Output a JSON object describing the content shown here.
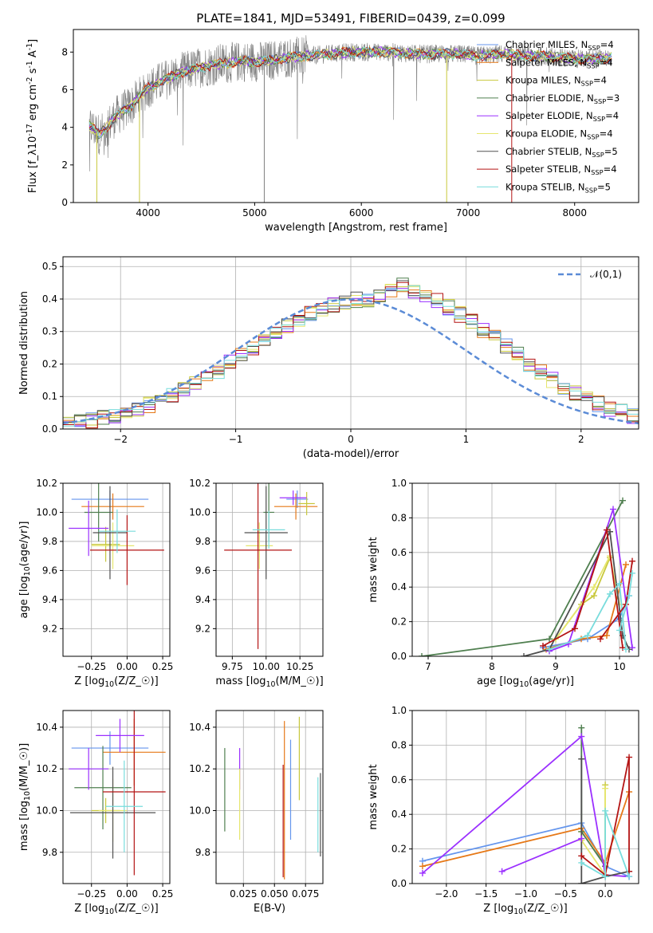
{
  "title": "PLATE=1841, MJD=53491, FIBERID=0439, z=0.099",
  "colors": {
    "Chabrier MILES": "#6495ed",
    "Salpeter MILES": "#e67817",
    "Kroupa MILES": "#c8c83c",
    "Chabrier ELODIE": "#4f7f4f",
    "Salpeter ELODIE": "#9b30ff",
    "Kroupa ELODIE": "#e6e66e",
    "Chabrier STELIB": "#505050",
    "Salpeter STELIB": "#b41414",
    "Kroupa STELIB": "#78dcdc"
  },
  "chart_data": [
    {
      "id": "spectrum",
      "type": "line",
      "title": "PLATE=1841, MJD=53491, FIBERID=0439, z=0.099",
      "xlabel": "wavelength [Angstrom, rest frame]",
      "ylabel": "Flux [f$_\\lambda$10$^{-17}$ erg cm$^{-2}$ s$^{-1}$ A$^{-1}$]",
      "xlim": [
        3300,
        8600
      ],
      "ylim": [
        0,
        9.2
      ],
      "xticks": [
        4000,
        5000,
        6000,
        7000,
        8000
      ],
      "yticks": [
        0,
        2,
        4,
        6,
        8
      ],
      "legend_loc": "upper right",
      "data_color": "#808080",
      "continuum_x": [
        3450,
        3550,
        3700,
        3850,
        4000,
        4150,
        4300,
        4500,
        4700,
        4900,
        5100,
        5300,
        5500,
        5700,
        5900,
        6100,
        6300,
        6500,
        6700,
        6900,
        7100,
        7300,
        7500,
        7700,
        7900,
        8100,
        8300
      ],
      "continuum_y": [
        4.1,
        3.6,
        4.6,
        5.2,
        6.1,
        6.5,
        6.9,
        7.2,
        7.4,
        7.5,
        7.5,
        7.7,
        7.8,
        7.9,
        8.0,
        8.0,
        8.0,
        7.9,
        7.9,
        7.9,
        7.8,
        7.9,
        7.8,
        7.8,
        7.7,
        7.6,
        7.7
      ],
      "series": [
        {
          "name": "Chabrier MILES, N$_{SSP}$=4"
        },
        {
          "name": "Salpeter MILES, N$_{SSP}$=4"
        },
        {
          "name": "Kroupa MILES, N$_{SSP}$=4"
        },
        {
          "name": "Chabrier ELODIE, N$_{SSP}$=3"
        },
        {
          "name": "Salpeter ELODIE, N$_{SSP}$=4"
        },
        {
          "name": "Kroupa ELODIE, N$_{SSP}$=4"
        },
        {
          "name": "Chabrier STELIB, N$_{SSP}$=5"
        },
        {
          "name": "Salpeter STELIB, N$_{SSP}$=4"
        },
        {
          "name": "Kroupa STELIB, N$_{SSP}$=5"
        }
      ]
    },
    {
      "id": "residuals",
      "type": "histogram",
      "xlabel": "(data-model)/error",
      "ylabel": "Normed distribution",
      "xlim": [
        -2.5,
        2.5
      ],
      "ylim": [
        0,
        0.53
      ],
      "xticks": [
        -2,
        -1,
        0,
        1,
        2
      ],
      "yticks": [
        0.0,
        0.1,
        0.2,
        0.3,
        0.4,
        0.5
      ],
      "legend": "$\\mathcal{N}(0,1)$",
      "bin_width": 0.1,
      "bin_start": -2.5,
      "base_values": [
        0.018,
        0.022,
        0.027,
        0.033,
        0.04,
        0.05,
        0.062,
        0.074,
        0.088,
        0.103,
        0.12,
        0.14,
        0.16,
        0.18,
        0.205,
        0.228,
        0.25,
        0.272,
        0.295,
        0.318,
        0.338,
        0.356,
        0.37,
        0.383,
        0.393,
        0.398,
        0.4,
        0.412,
        0.43,
        0.44,
        0.425,
        0.41,
        0.395,
        0.375,
        0.352,
        0.33,
        0.305,
        0.28,
        0.253,
        0.228,
        0.2,
        0.176,
        0.152,
        0.13,
        0.11,
        0.092,
        0.077,
        0.064,
        0.052,
        0.042
      ]
    },
    {
      "id": "age-vs-Z",
      "type": "errorbar",
      "xlabel": "Z [log$_{10}$($Z/Z_\\odot$)]",
      "ylabel": "age  [log$_{10}$($age/yr$)]",
      "xlim": [
        -0.45,
        0.3
      ],
      "ylim": [
        9.01,
        10.2
      ],
      "xticks": [
        -0.25,
        0.0,
        0.25
      ],
      "xticklabels": [
        "−0.25",
        "0.00",
        "0.25"
      ],
      "yticks": [
        9.2,
        9.4,
        9.6,
        9.8,
        10.0,
        10.2
      ],
      "points": [
        {
          "series": "Chabrier MILES",
          "x": -0.12,
          "xerr": 0.27,
          "y": 10.09,
          "yerr": 0.06
        },
        {
          "series": "Salpeter MILES",
          "x": -0.1,
          "xerr": 0.22,
          "y": 10.04,
          "yerr": 0.09
        },
        {
          "series": "Kroupa MILES",
          "x": -0.15,
          "xerr": 0.1,
          "y": 9.78,
          "yerr": 0.12
        },
        {
          "series": "Chabrier ELODIE",
          "x": -0.2,
          "xerr": 0.1,
          "y": 10.0,
          "yerr": 0.2
        },
        {
          "series": "Salpeter ELODIE",
          "x": -0.27,
          "xerr": 0.14,
          "y": 9.89,
          "yerr": 0.19
        },
        {
          "series": "Kroupa ELODIE",
          "x": -0.1,
          "xerr": 0.15,
          "y": 9.77,
          "yerr": 0.16
        },
        {
          "series": "Chabrier STELIB",
          "x": -0.12,
          "xerr": 0.12,
          "y": 9.86,
          "yerr": 0.32
        },
        {
          "series": "Salpeter STELIB",
          "x": 0.0,
          "xerr": 0.26,
          "y": 9.74,
          "yerr": 0.24
        },
        {
          "series": "Kroupa STELIB",
          "x": -0.07,
          "xerr": 0.13,
          "y": 9.87,
          "yerr": 0.15
        }
      ]
    },
    {
      "id": "age-vs-mass",
      "type": "errorbar",
      "xlabel": "mass [log$_{10}$($M/M_\\odot$)]",
      "xlim": [
        9.63,
        10.42
      ],
      "ylim": [
        9.01,
        10.2
      ],
      "xticks": [
        9.75,
        10.0,
        10.25
      ],
      "xticklabels": [
        "9.75",
        "10.00",
        "10.25"
      ],
      "yticks": [
        9.2,
        9.4,
        9.6,
        9.8,
        10.0,
        10.2
      ],
      "points": [
        {
          "series": "Chabrier MILES",
          "x": 10.23,
          "xerr": 0.08,
          "y": 10.09,
          "yerr": 0.06
        },
        {
          "series": "Salpeter MILES",
          "x": 10.22,
          "xerr": 0.16,
          "y": 10.04,
          "yerr": 0.09
        },
        {
          "series": "Kroupa MILES",
          "x": 10.3,
          "xerr": 0.06,
          "y": 10.06,
          "yerr": 0.08
        },
        {
          "series": "Chabrier ELODIE",
          "x": 10.02,
          "xerr": 0.04,
          "y": 10.0,
          "yerr": 0.2
        },
        {
          "series": "Salpeter ELODIE",
          "x": 10.2,
          "xerr": 0.1,
          "y": 10.1,
          "yerr": 0.05
        },
        {
          "series": "Kroupa ELODIE",
          "x": 9.95,
          "xerr": 0.1,
          "y": 9.77,
          "yerr": 0.16
        },
        {
          "series": "Chabrier STELIB",
          "x": 10.0,
          "xerr": 0.16,
          "y": 9.86,
          "yerr": 0.32
        },
        {
          "series": "Salpeter STELIB",
          "x": 9.94,
          "xerr": 0.25,
          "y": 9.74,
          "yerr": 0.68
        },
        {
          "series": "Kroupa STELIB",
          "x": 10.02,
          "xerr": 0.12,
          "y": 9.88,
          "yerr": 0.13
        }
      ]
    },
    {
      "id": "mass-weight-vs-age",
      "type": "line",
      "xlabel": "age  [log$_{10}$($age/yr$)]",
      "ylabel": "mass weight",
      "xlim": [
        6.75,
        10.3
      ],
      "ylim": [
        0,
        1.0
      ],
      "xticks": [
        7,
        8,
        9,
        10
      ],
      "yticks": [
        0.0,
        0.2,
        0.4,
        0.6,
        0.8,
        1.0
      ],
      "series": [
        {
          "name": "Chabrier MILES",
          "x": [
            8.8,
            9.5,
            10.0,
            10.15
          ],
          "y": [
            0.05,
            0.1,
            0.22,
            0.35
          ]
        },
        {
          "name": "Salpeter MILES",
          "x": [
            8.85,
            9.4,
            9.8,
            10.1
          ],
          "y": [
            0.04,
            0.1,
            0.12,
            0.53
          ]
        },
        {
          "name": "Kroupa MILES",
          "x": [
            9.0,
            9.4,
            9.6,
            9.85
          ],
          "y": [
            0.1,
            0.3,
            0.35,
            0.57
          ]
        },
        {
          "name": "Chabrier ELODIE",
          "x": [
            6.9,
            8.9,
            10.05
          ],
          "y": [
            0.0,
            0.1,
            0.9
          ]
        },
        {
          "name": "Salpeter ELODIE",
          "x": [
            8.9,
            9.2,
            9.9,
            10.2
          ],
          "y": [
            0.03,
            0.07,
            0.85,
            0.05
          ]
        },
        {
          "name": "Kroupa ELODIE",
          "x": [
            9.0,
            9.6,
            9.85,
            10.0
          ],
          "y": [
            0.1,
            0.4,
            0.58,
            0.3
          ]
        },
        {
          "name": "Chabrier STELIB",
          "x": [
            8.5,
            8.9,
            9.85,
            10.05,
            10.15
          ],
          "y": [
            0.0,
            0.04,
            0.72,
            0.12,
            0.04
          ]
        },
        {
          "name": "Salpeter STELIB",
          "x": [
            8.8,
            9.3,
            9.8,
            10.05
          ],
          "y": [
            0.06,
            0.16,
            0.73,
            0.05
          ]
        },
        {
          "name": "Kroupa STELIB",
          "x": [
            8.9,
            9.5,
            9.85,
            10.0,
            10.1
          ],
          "y": [
            0.04,
            0.12,
            0.36,
            0.42,
            0.04
          ]
        }
      ],
      "extra_series": [
        {
          "name": "Salpeter STELIB",
          "x": [
            9.7,
            10.1,
            10.2
          ],
          "y": [
            0.1,
            0.3,
            0.55
          ]
        },
        {
          "name": "Kroupa STELIB",
          "x": [
            10.0,
            10.15,
            10.2
          ],
          "y": [
            0.15,
            0.35,
            0.48
          ]
        }
      ]
    },
    {
      "id": "mass-vs-Z",
      "type": "errorbar",
      "xlabel": "Z [log$_{10}$($Z/Z_\\odot$)]",
      "ylabel": "mass [log$_{10}$($M/M_\\odot$)]",
      "xlim": [
        -0.45,
        0.3
      ],
      "ylim": [
        9.65,
        10.48
      ],
      "xticks": [
        -0.25,
        0.0,
        0.25
      ],
      "xticklabels": [
        "−0.25",
        "0.00",
        "0.25"
      ],
      "yticks": [
        9.8,
        10.0,
        10.2,
        10.4
      ],
      "points": [
        {
          "series": "Chabrier MILES",
          "x": -0.12,
          "xerr": 0.27,
          "y": 10.3,
          "yerr": 0.08
        },
        {
          "series": "Salpeter MILES",
          "x": 0.05,
          "xerr": 0.22,
          "y": 10.28,
          "yerr": 0.16
        },
        {
          "series": "Kroupa MILES",
          "x": -0.15,
          "xerr": 0.1,
          "y": 10.0,
          "yerr": 0.06
        },
        {
          "series": "Chabrier ELODIE",
          "x": -0.17,
          "xerr": 0.2,
          "y": 10.11,
          "yerr": 0.2
        },
        {
          "series": "Salpeter ELODIE",
          "x": -0.27,
          "xerr": 0.14,
          "y": 10.2,
          "yerr": 0.1
        },
        {
          "series": "Kroupa ELODIE",
          "x": -0.1,
          "xerr": 0.1,
          "y": 10.0,
          "yerr": 0.15
        },
        {
          "series": "Chabrier STELIB",
          "x": -0.1,
          "xerr": 0.3,
          "y": 9.99,
          "yerr": 0.22
        },
        {
          "series": "Salpeter STELIB",
          "x": 0.05,
          "xerr": 0.22,
          "y": 10.09,
          "yerr": 0.4
        },
        {
          "series": "Kroupa STELIB",
          "x": -0.02,
          "xerr": 0.13,
          "y": 10.02,
          "yerr": 0.22
        },
        {
          "series": "Salpeter ELODIE",
          "x": -0.05,
          "xerr": 0.17,
          "y": 10.36,
          "yerr": 0.08
        }
      ]
    },
    {
      "id": "mass-vs-EBV",
      "type": "errorbar",
      "xlabel": "E(B-V)",
      "xlim": [
        0.003,
        0.089
      ],
      "ylim": [
        9.65,
        10.48
      ],
      "xticks": [
        0.025,
        0.05,
        0.075
      ],
      "xticklabels": [
        "0.025",
        "0.050",
        "0.075"
      ],
      "yticks": [
        9.8,
        10.0,
        10.2,
        10.4
      ],
      "points": [
        {
          "series": "Chabrier MILES",
          "x": 0.063,
          "xerr": 0,
          "y": 10.1,
          "yerr": 0.24
        },
        {
          "series": "Salpeter MILES",
          "x": 0.058,
          "xerr": 0,
          "y": 10.05,
          "yerr": 0.38
        },
        {
          "series": "Kroupa MILES",
          "x": 0.07,
          "xerr": 0,
          "y": 10.25,
          "yerr": 0.2
        },
        {
          "series": "Chabrier ELODIE",
          "x": 0.01,
          "xerr": 0,
          "y": 10.1,
          "yerr": 0.2
        },
        {
          "series": "Salpeter ELODIE",
          "x": 0.022,
          "xerr": 0,
          "y": 10.2,
          "yerr": 0.1
        },
        {
          "series": "Kroupa ELODIE",
          "x": 0.022,
          "xerr": 0,
          "y": 10.03,
          "yerr": 0.17
        },
        {
          "series": "Chabrier STELIB",
          "x": 0.087,
          "xerr": 0,
          "y": 9.98,
          "yerr": 0.2
        },
        {
          "series": "Salpeter STELIB",
          "x": 0.057,
          "xerr": 0,
          "y": 9.95,
          "yerr": 0.27
        },
        {
          "series": "Kroupa STELIB",
          "x": 0.085,
          "xerr": 0,
          "y": 9.98,
          "yerr": 0.18
        }
      ]
    },
    {
      "id": "mass-weight-vs-Z",
      "type": "line",
      "xlabel": "Z [log$_{10}$($Z/Z_\\odot$)]",
      "ylabel": "mass weight",
      "xlim": [
        -2.43,
        0.42
      ],
      "ylim": [
        0,
        1.0
      ],
      "xticks": [
        -2.0,
        -1.5,
        -1.0,
        -0.5,
        0.0
      ],
      "xticklabels": [
        "−2.0",
        "−1.5",
        "−1.0",
        "−0.5",
        "0.0"
      ],
      "yticks": [
        0.0,
        0.2,
        0.4,
        0.6,
        0.8,
        1.0
      ],
      "series": [
        {
          "name": "Chabrier MILES",
          "x": [
            -2.3,
            -0.3,
            0.0,
            0.3
          ],
          "y": [
            0.13,
            0.35,
            0.1,
            0.04
          ]
        },
        {
          "name": "Salpeter MILES",
          "x": [
            -2.3,
            -0.3,
            0.0,
            0.3
          ],
          "y": [
            0.1,
            0.32,
            0.12,
            0.53
          ]
        },
        {
          "name": "Kroupa MILES",
          "x": [
            -0.3,
            0.0,
            0.0
          ],
          "y": [
            0.3,
            0.1,
            0.57
          ]
        },
        {
          "name": "Chabrier ELODIE",
          "x": [
            -0.3,
            -0.3,
            0.0
          ],
          "y": [
            0.9,
            0.3,
            0.1
          ]
        },
        {
          "name": "Salpeter ELODIE",
          "x": [
            -2.3,
            -0.3,
            0.0,
            0.3
          ],
          "y": [
            0.06,
            0.85,
            0.05,
            0.04
          ]
        },
        {
          "name": "Kroupa ELODIE",
          "x": [
            -0.3,
            0.0,
            0.0
          ],
          "y": [
            0.25,
            0.05,
            0.55
          ]
        },
        {
          "name": "Chabrier STELIB",
          "x": [
            -0.3,
            -0.3,
            0.0,
            0.3
          ],
          "y": [
            0.72,
            0.0,
            0.04,
            0.07
          ]
        },
        {
          "name": "Salpeter STELIB",
          "x": [
            -0.3,
            0.0,
            0.3,
            0.3
          ],
          "y": [
            0.16,
            0.05,
            0.73,
            0.07
          ]
        },
        {
          "name": "Kroupa STELIB",
          "x": [
            -0.3,
            0.0,
            0.0,
            0.3
          ],
          "y": [
            0.12,
            0.04,
            0.42,
            0.04
          ]
        }
      ],
      "extra_series": [
        {
          "name": "Salpeter ELODIE",
          "x": [
            -1.3,
            -0.3
          ],
          "y": [
            0.07,
            0.26
          ]
        }
      ]
    }
  ]
}
